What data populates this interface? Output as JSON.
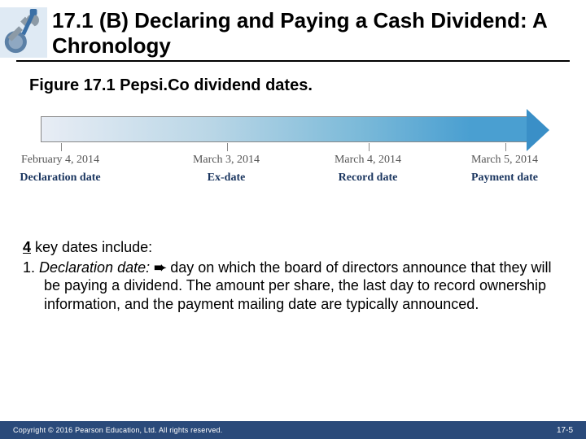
{
  "header": {
    "title": "17.1 (B)  Declaring and Paying a Cash Dividend: A Chronology",
    "icon": "wrench-tool-icon"
  },
  "figure": {
    "caption": "Figure 17.1 Pepsi.Co dividend dates.",
    "timeline": {
      "bar_gradient": [
        "#e8edf5",
        "#b9d6e6",
        "#7cbad9",
        "#4a9fd1"
      ],
      "arrow_color": "#3a8fc7",
      "border_color": "#888888",
      "points": [
        {
          "date": "February 4, 2014",
          "label": "Declaration date",
          "x_pct": 4
        },
        {
          "date": "March 3, 2014",
          "label": "Ex-date",
          "x_pct": 38
        },
        {
          "date": "March 4, 2014",
          "label": "Record date",
          "x_pct": 67
        },
        {
          "date": "March 5, 2014",
          "label": "Payment date",
          "x_pct": 95
        }
      ],
      "date_color": "#555555",
      "label_color": "#1a355f",
      "font_family": "Georgia",
      "date_fontsize": 14,
      "label_fontsize": 14
    }
  },
  "body": {
    "lead_bold": "4",
    "lead_rest": " key dates include:",
    "item_num": "1. ",
    "item_term": "Declaration date:",
    "item_arrow": " ➨ ",
    "item_text": "day on which the board of directors announce that they will be paying a dividend.  The amount per share, the last day to record ownership information, and the payment mailing date are typically announced."
  },
  "footer": {
    "left": "Copyright © 2016 Pearson Education, Ltd. All rights reserved.",
    "right": "17-5",
    "bg_color": "#2a4a7a",
    "accent_color": "#b88a2e"
  }
}
